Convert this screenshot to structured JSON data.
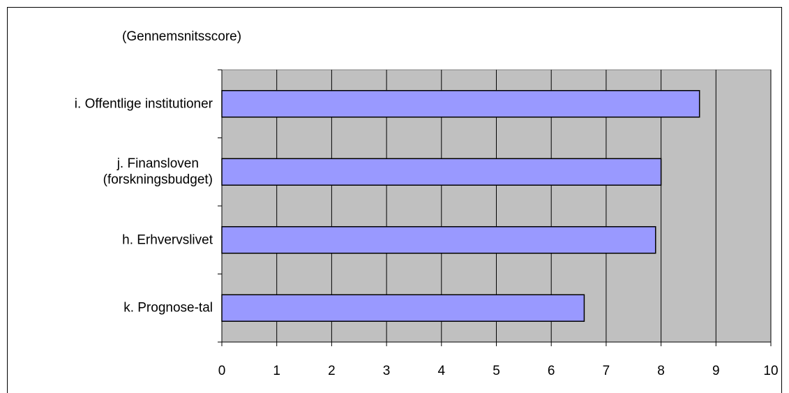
{
  "chart_data": {
    "type": "barh",
    "title": "(Gennemsnitsscore)",
    "categories": [
      "i. Offentlige institutioner",
      "j. Finansloven\n(forskningsbudget)",
      "h. Erhvervslivet",
      "k. Prognose-tal"
    ],
    "values": [
      8.7,
      8.0,
      7.9,
      6.6
    ],
    "color": "#9999ff",
    "xlim": [
      0,
      10
    ],
    "xticks": [
      0,
      1,
      2,
      3,
      4,
      5,
      6,
      7,
      8,
      9,
      10
    ],
    "grid": true
  }
}
